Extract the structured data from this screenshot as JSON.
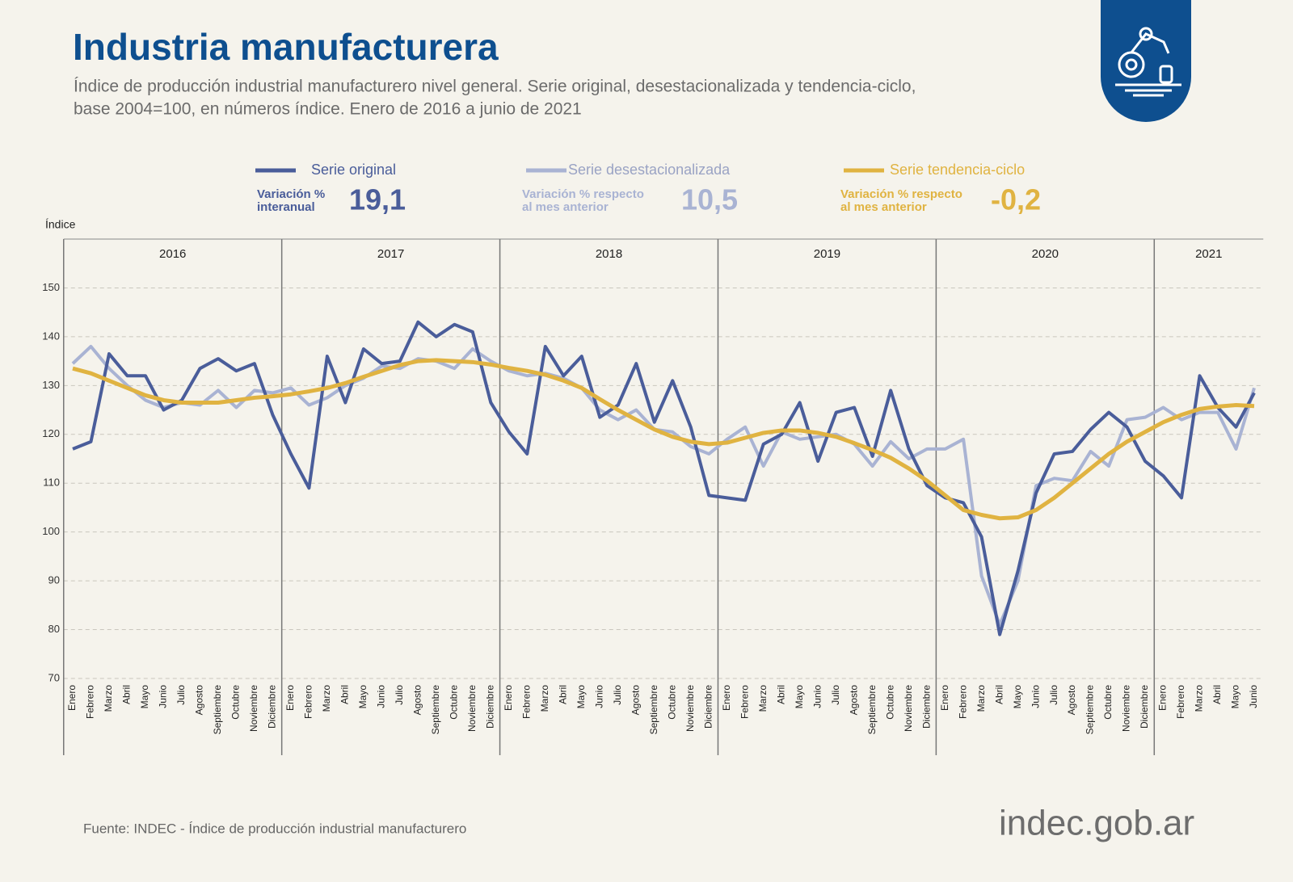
{
  "chart_data": {
    "type": "line",
    "title": "Industria manufacturera",
    "subtitle": [
      "Índice de producción industrial manufacturero nivel general. Serie original, desestacionalizada y tendencia-ciclo,",
      "base 2004=100, en números índice. Enero de 2016 a junio de 2021"
    ],
    "y_label": "Índice",
    "years": [
      "2016",
      "2017",
      "2018",
      "2019",
      "2020",
      "2021"
    ],
    "categories": [
      "Enero",
      "Febrero",
      "Marzo",
      "Abril",
      "Mayo",
      "Junio",
      "Julio",
      "Agosto",
      "Septiembre",
      "Octubre",
      "Noviembre",
      "Diciembre",
      "Enero",
      "Febrero",
      "Marzo",
      "Abril",
      "Mayo",
      "Junio",
      "Julio",
      "Agosto",
      "Septiembre",
      "Octubre",
      "Noviembre",
      "Diciembre",
      "Enero",
      "Febrero",
      "Marzo",
      "Abril",
      "Mayo",
      "Junio",
      "Julio",
      "Agosto",
      "Septiembre",
      "Octubre",
      "Noviembre",
      "Diciembre",
      "Enero",
      "Febrero",
      "Marzo",
      "Abril",
      "Mayo",
      "Junio",
      "Julio",
      "Agosto",
      "Septiembre",
      "Octubre",
      "Noviembre",
      "Diciembre",
      "Enero",
      "Febrero",
      "Marzo",
      "Abril",
      "Mayo",
      "Junio",
      "Julio",
      "Agosto",
      "Septiembre",
      "Octubre",
      "Noviembre",
      "Diciembre",
      "Enero",
      "Febrero",
      "Marzo",
      "Abril",
      "Mayo",
      "Junio"
    ],
    "series": [
      {
        "name": "Serie original",
        "color": "#4a5d9a",
        "stat_label": [
          "Variación %",
          "interanual"
        ],
        "stat": {
          "value": 19.1,
          "label": "19,1"
        },
        "values": [
          117,
          118.5,
          136.5,
          132,
          132,
          125,
          127,
          133.5,
          135.5,
          133,
          134.5,
          124,
          116,
          109,
          136,
          126.5,
          137.5,
          134.5,
          135,
          143,
          140,
          142.5,
          141,
          126.5,
          120.5,
          116,
          138,
          132,
          136,
          123.5,
          126,
          134.5,
          122.5,
          131,
          121.5,
          107.5,
          107,
          106.5,
          118,
          120,
          126.5,
          114.5,
          124.5,
          125.5,
          115.5,
          129,
          117,
          109.5,
          107,
          106,
          99,
          79,
          92,
          108,
          116,
          116.5,
          121,
          124.5,
          121.5,
          114.5,
          111.5,
          107,
          132,
          125.5,
          121.5,
          128.5
        ]
      },
      {
        "name": "Serie desestacionalizada",
        "color": "#a9b3d3",
        "stat_label": [
          "Variación % respecto",
          "al mes anterior"
        ],
        "stat": {
          "value": 10.5,
          "label": "10,5"
        },
        "values": [
          134.5,
          138,
          133.5,
          130,
          127,
          125.5,
          126.5,
          126,
          129,
          125.5,
          129,
          128.5,
          129.5,
          126,
          127.5,
          130,
          131.5,
          134,
          133.5,
          135.5,
          135,
          133.5,
          137.5,
          135,
          133,
          132,
          132.5,
          131.5,
          129.5,
          125,
          123,
          125,
          121,
          120.5,
          117.5,
          116,
          119,
          121.5,
          113.5,
          120.5,
          119,
          119.5,
          120,
          118,
          113.5,
          118.5,
          115,
          117,
          117,
          119,
          91,
          81,
          90,
          109.5,
          111,
          110.5,
          116.5,
          113.5,
          123,
          123.5,
          125.5,
          123,
          124.5,
          124.5,
          117,
          129.5
        ]
      },
      {
        "name": "Serie tendencia-ciclo",
        "color": "#e0b341",
        "stat_label": [
          "Variación % respecto",
          "al mes anterior"
        ],
        "stat": {
          "value": -0.2,
          "label": "-0,2"
        },
        "values": [
          133.5,
          132.5,
          131,
          129.5,
          128,
          127,
          126.5,
          126.5,
          126.5,
          127,
          127.5,
          127.8,
          128.2,
          128.8,
          129.5,
          130.5,
          131.8,
          133,
          134.2,
          135,
          135.2,
          135,
          134.8,
          134.3,
          133.6,
          133,
          132.2,
          131,
          129.5,
          127.2,
          125,
          123,
          121,
          119.5,
          118.5,
          118,
          118.3,
          119.3,
          120.3,
          120.8,
          120.8,
          120.3,
          119.5,
          118.2,
          116.8,
          115.2,
          113,
          110.5,
          107.5,
          104.5,
          103.5,
          102.8,
          103,
          104.5,
          107,
          110,
          113,
          116,
          118.5,
          120.5,
          122.5,
          124,
          125.2,
          125.7,
          126,
          125.8
        ]
      }
    ],
    "ylim": [
      70,
      160
    ],
    "yticks": [
      70,
      80,
      90,
      100,
      110,
      120,
      130,
      140,
      150
    ],
    "grid": true,
    "source": "Fuente: INDEC - Índice de producción industrial manufacturero",
    "logo": "indec.gob.ar"
  }
}
